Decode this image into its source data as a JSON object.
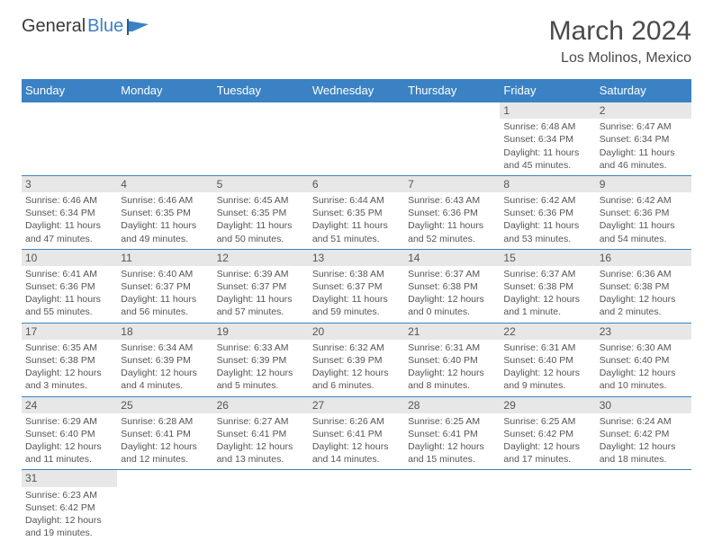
{
  "logo": {
    "text1": "General",
    "text2": "Blue"
  },
  "title": "March 2024",
  "location": "Los Molinos, Mexico",
  "colors": {
    "header_bg": "#3b82c4",
    "header_fg": "#ffffff",
    "daynum_bg": "#e7e7e7",
    "border": "#3b82c4",
    "text": "#555555"
  },
  "weekdays": [
    "Sunday",
    "Monday",
    "Tuesday",
    "Wednesday",
    "Thursday",
    "Friday",
    "Saturday"
  ],
  "weeks": [
    [
      null,
      null,
      null,
      null,
      null,
      {
        "n": "1",
        "sr": "Sunrise: 6:48 AM",
        "ss": "Sunset: 6:34 PM",
        "d1": "Daylight: 11 hours",
        "d2": "and 45 minutes."
      },
      {
        "n": "2",
        "sr": "Sunrise: 6:47 AM",
        "ss": "Sunset: 6:34 PM",
        "d1": "Daylight: 11 hours",
        "d2": "and 46 minutes."
      }
    ],
    [
      {
        "n": "3",
        "sr": "Sunrise: 6:46 AM",
        "ss": "Sunset: 6:34 PM",
        "d1": "Daylight: 11 hours",
        "d2": "and 47 minutes."
      },
      {
        "n": "4",
        "sr": "Sunrise: 6:46 AM",
        "ss": "Sunset: 6:35 PM",
        "d1": "Daylight: 11 hours",
        "d2": "and 49 minutes."
      },
      {
        "n": "5",
        "sr": "Sunrise: 6:45 AM",
        "ss": "Sunset: 6:35 PM",
        "d1": "Daylight: 11 hours",
        "d2": "and 50 minutes."
      },
      {
        "n": "6",
        "sr": "Sunrise: 6:44 AM",
        "ss": "Sunset: 6:35 PM",
        "d1": "Daylight: 11 hours",
        "d2": "and 51 minutes."
      },
      {
        "n": "7",
        "sr": "Sunrise: 6:43 AM",
        "ss": "Sunset: 6:36 PM",
        "d1": "Daylight: 11 hours",
        "d2": "and 52 minutes."
      },
      {
        "n": "8",
        "sr": "Sunrise: 6:42 AM",
        "ss": "Sunset: 6:36 PM",
        "d1": "Daylight: 11 hours",
        "d2": "and 53 minutes."
      },
      {
        "n": "9",
        "sr": "Sunrise: 6:42 AM",
        "ss": "Sunset: 6:36 PM",
        "d1": "Daylight: 11 hours",
        "d2": "and 54 minutes."
      }
    ],
    [
      {
        "n": "10",
        "sr": "Sunrise: 6:41 AM",
        "ss": "Sunset: 6:36 PM",
        "d1": "Daylight: 11 hours",
        "d2": "and 55 minutes."
      },
      {
        "n": "11",
        "sr": "Sunrise: 6:40 AM",
        "ss": "Sunset: 6:37 PM",
        "d1": "Daylight: 11 hours",
        "d2": "and 56 minutes."
      },
      {
        "n": "12",
        "sr": "Sunrise: 6:39 AM",
        "ss": "Sunset: 6:37 PM",
        "d1": "Daylight: 11 hours",
        "d2": "and 57 minutes."
      },
      {
        "n": "13",
        "sr": "Sunrise: 6:38 AM",
        "ss": "Sunset: 6:37 PM",
        "d1": "Daylight: 11 hours",
        "d2": "and 59 minutes."
      },
      {
        "n": "14",
        "sr": "Sunrise: 6:37 AM",
        "ss": "Sunset: 6:38 PM",
        "d1": "Daylight: 12 hours",
        "d2": "and 0 minutes."
      },
      {
        "n": "15",
        "sr": "Sunrise: 6:37 AM",
        "ss": "Sunset: 6:38 PM",
        "d1": "Daylight: 12 hours",
        "d2": "and 1 minute."
      },
      {
        "n": "16",
        "sr": "Sunrise: 6:36 AM",
        "ss": "Sunset: 6:38 PM",
        "d1": "Daylight: 12 hours",
        "d2": "and 2 minutes."
      }
    ],
    [
      {
        "n": "17",
        "sr": "Sunrise: 6:35 AM",
        "ss": "Sunset: 6:38 PM",
        "d1": "Daylight: 12 hours",
        "d2": "and 3 minutes."
      },
      {
        "n": "18",
        "sr": "Sunrise: 6:34 AM",
        "ss": "Sunset: 6:39 PM",
        "d1": "Daylight: 12 hours",
        "d2": "and 4 minutes."
      },
      {
        "n": "19",
        "sr": "Sunrise: 6:33 AM",
        "ss": "Sunset: 6:39 PM",
        "d1": "Daylight: 12 hours",
        "d2": "and 5 minutes."
      },
      {
        "n": "20",
        "sr": "Sunrise: 6:32 AM",
        "ss": "Sunset: 6:39 PM",
        "d1": "Daylight: 12 hours",
        "d2": "and 6 minutes."
      },
      {
        "n": "21",
        "sr": "Sunrise: 6:31 AM",
        "ss": "Sunset: 6:40 PM",
        "d1": "Daylight: 12 hours",
        "d2": "and 8 minutes."
      },
      {
        "n": "22",
        "sr": "Sunrise: 6:31 AM",
        "ss": "Sunset: 6:40 PM",
        "d1": "Daylight: 12 hours",
        "d2": "and 9 minutes."
      },
      {
        "n": "23",
        "sr": "Sunrise: 6:30 AM",
        "ss": "Sunset: 6:40 PM",
        "d1": "Daylight: 12 hours",
        "d2": "and 10 minutes."
      }
    ],
    [
      {
        "n": "24",
        "sr": "Sunrise: 6:29 AM",
        "ss": "Sunset: 6:40 PM",
        "d1": "Daylight: 12 hours",
        "d2": "and 11 minutes."
      },
      {
        "n": "25",
        "sr": "Sunrise: 6:28 AM",
        "ss": "Sunset: 6:41 PM",
        "d1": "Daylight: 12 hours",
        "d2": "and 12 minutes."
      },
      {
        "n": "26",
        "sr": "Sunrise: 6:27 AM",
        "ss": "Sunset: 6:41 PM",
        "d1": "Daylight: 12 hours",
        "d2": "and 13 minutes."
      },
      {
        "n": "27",
        "sr": "Sunrise: 6:26 AM",
        "ss": "Sunset: 6:41 PM",
        "d1": "Daylight: 12 hours",
        "d2": "and 14 minutes."
      },
      {
        "n": "28",
        "sr": "Sunrise: 6:25 AM",
        "ss": "Sunset: 6:41 PM",
        "d1": "Daylight: 12 hours",
        "d2": "and 15 minutes."
      },
      {
        "n": "29",
        "sr": "Sunrise: 6:25 AM",
        "ss": "Sunset: 6:42 PM",
        "d1": "Daylight: 12 hours",
        "d2": "and 17 minutes."
      },
      {
        "n": "30",
        "sr": "Sunrise: 6:24 AM",
        "ss": "Sunset: 6:42 PM",
        "d1": "Daylight: 12 hours",
        "d2": "and 18 minutes."
      }
    ],
    [
      {
        "n": "31",
        "sr": "Sunrise: 6:23 AM",
        "ss": "Sunset: 6:42 PM",
        "d1": "Daylight: 12 hours",
        "d2": "and 19 minutes."
      },
      null,
      null,
      null,
      null,
      null,
      null
    ]
  ]
}
